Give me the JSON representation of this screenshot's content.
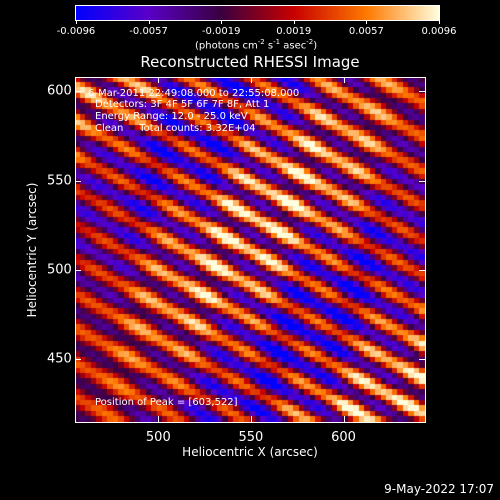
{
  "colorbar": {
    "min": -0.0096,
    "max": 0.0096,
    "tick_labels": [
      "-0.0096",
      "-0.0057",
      "-0.0019",
      "0.0019",
      "0.0057",
      "0.0096"
    ],
    "units_text": "(photons cm",
    "units_exp1": "-2",
    "units_mid": " s",
    "units_exp2": "-1",
    "units_end": " asec",
    "units_exp3": "-2",
    "units_close": ")",
    "colormap_stops": [
      "#0000ff",
      "#5a00c8",
      "#3a0040",
      "#c80000",
      "#ff7a00",
      "#ffffe0"
    ]
  },
  "chart_data": {
    "type": "heatmap",
    "title": "Reconstructed RHESSI Image",
    "xlabel": "Heliocentric X (arcsec)",
    "ylabel": "Heliocentric Y (arcsec)",
    "xlim": [
      455,
      644
    ],
    "ylim": [
      415,
      608
    ],
    "xticks": [
      "500",
      "550",
      "600"
    ],
    "yticks": [
      "450",
      "500",
      "550",
      "600"
    ],
    "xtick_values": [
      500,
      550,
      600
    ],
    "ytick_values": [
      450,
      500,
      550,
      600
    ],
    "peak_position": [
      603,
      522
    ],
    "pattern": "diagonal fringes, value range -0.0096 to 0.0096"
  },
  "annotations": {
    "time_range": "6-Mar-2011 22:49:08.000 to 22:55:08.000",
    "detectors": "Detectors: 3F 4F 5F 6F 7F 8F, Att 1",
    "energy": "Energy Range: 12.0 - 25.0 keV",
    "clean": "Clean     Total counts: 3.32E+04",
    "peak": "Position of Peak = [603,522]"
  },
  "timestamp": "9-May-2022 17:07"
}
